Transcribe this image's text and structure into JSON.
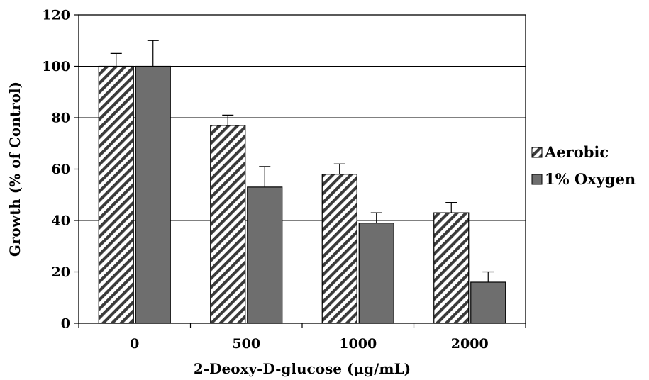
{
  "chart_data": {
    "type": "bar",
    "title": "",
    "xlabel": "2-Deoxy-D-glucose (μg/mL)",
    "ylabel": "Growth (% of Control)",
    "ylim": [
      0,
      120
    ],
    "yticks": [
      0,
      20,
      40,
      60,
      80,
      100,
      120
    ],
    "grid": true,
    "legend_position": "right",
    "categories": [
      "0",
      "500",
      "1000",
      "2000"
    ],
    "series": [
      {
        "name": "Aerobic",
        "pattern": "hatched",
        "color": "#555555",
        "values": [
          100,
          77,
          58,
          43
        ],
        "errors": [
          5,
          4,
          4,
          4
        ]
      },
      {
        "name": "1% Oxygen",
        "pattern": "solid",
        "color": "#6e6e6e",
        "values": [
          100,
          53,
          39,
          16
        ],
        "errors": [
          10,
          8,
          4,
          4
        ]
      }
    ]
  }
}
